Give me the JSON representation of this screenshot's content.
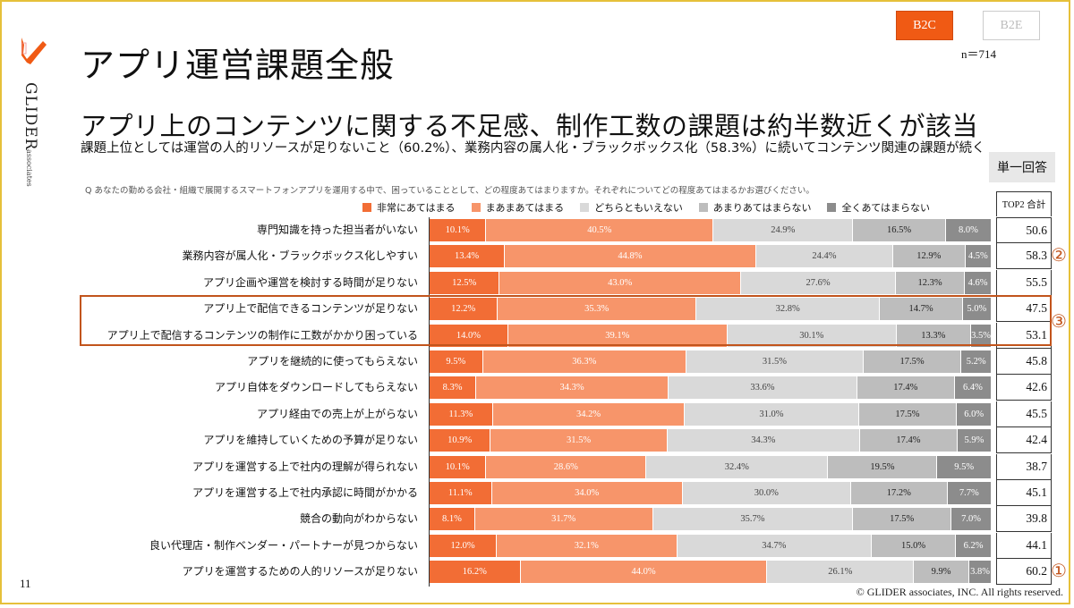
{
  "brand": {
    "name": "GLIDER",
    "sub": "associates",
    "accent": "#f05a14"
  },
  "header": {
    "title": "アプリ運営課題全般",
    "tabs": [
      {
        "label": "B2C",
        "active": true
      },
      {
        "label": "B2E",
        "active": false
      }
    ],
    "sample": "n＝714"
  },
  "headline": "アプリ上のコンテンツに関する不足感、制作工数の課題は約半数近くが該当",
  "subline": "課題上位としては運営の人的リソースが足りないこと（60.2%）、業務内容の属人化・ブラックボックス化（58.3%）に続いてコンテンツ関連の課題が続く",
  "answer_type": "単一回答",
  "question": "Q あなたの勤める会社・組織で展開するスマートフォンアプリを運用する中で、困っていることとして、どの程度あてはまりますか。それぞれについてどの程度あてはまるかお選びください。",
  "top2_header": "TOP2 合計",
  "chart_data": {
    "type": "bar",
    "orientation": "horizontal-stacked-100",
    "title": "アプリ運営課題全般",
    "xlabel": "",
    "ylabel": "",
    "xlim": [
      0,
      100
    ],
    "legend_position": "top",
    "series": [
      {
        "name": "非常にあてはまる",
        "color": "#f26d35",
        "text_color": "#ffffff",
        "values": [
          10.1,
          13.4,
          12.5,
          12.2,
          14.0,
          9.5,
          8.3,
          11.3,
          10.9,
          10.1,
          11.1,
          8.1,
          12.0,
          16.2
        ]
      },
      {
        "name": "まあまあてはまる",
        "color": "#f7956a",
        "text_color": "#ffffff",
        "values": [
          40.5,
          44.8,
          43.0,
          35.3,
          39.1,
          36.3,
          34.3,
          34.2,
          31.5,
          28.6,
          34.0,
          31.7,
          32.1,
          44.0
        ]
      },
      {
        "name": "どちらともいえない",
        "color": "#d9d9d9",
        "text_color": "#444444",
        "values": [
          24.9,
          24.4,
          27.6,
          32.8,
          30.1,
          31.5,
          33.6,
          31.0,
          34.3,
          32.4,
          30.0,
          35.7,
          34.7,
          26.1
        ]
      },
      {
        "name": "あまりあてはまらない",
        "color": "#bdbdbd",
        "text_color": "#222222",
        "values": [
          16.5,
          12.9,
          12.3,
          14.7,
          13.3,
          17.5,
          17.4,
          17.5,
          17.4,
          19.5,
          17.2,
          17.5,
          15.0,
          9.9
        ]
      },
      {
        "name": "全くあてはまらない",
        "color": "#8c8c8c",
        "text_color": "#ffffff",
        "values": [
          8.0,
          4.5,
          4.6,
          5.0,
          3.5,
          5.2,
          6.4,
          6.0,
          5.9,
          9.5,
          7.7,
          7.0,
          6.2,
          3.8
        ]
      }
    ],
    "categories": [
      "専門知識を持った担当者がいない",
      "業務内容が属人化・ブラックボックス化しやすい",
      "アプリ企画や運営を検討する時間が足りない",
      "アプリ上で配信できるコンテンツが足りない",
      "アプリ上で配信するコンテンツの制作に工数がかかり困っている",
      "アプリを継続的に使ってもらえない",
      "アプリ自体をダウンロードしてもらえない",
      "アプリ経由での売上が上がらない",
      "アプリを維持していくための予算が足りない",
      "アプリを運営する上で社内の理解が得られない",
      "アプリを運営する上で社内承認に時間がかかる",
      "競合の動向がわからない",
      "良い代理店・制作ベンダー・パートナーが見つからない",
      "アプリを運営するための人的リソースが足りない"
    ],
    "top2_totals": [
      "50.6",
      "58.3",
      "55.5",
      "47.5",
      "53.1",
      "45.8",
      "42.6",
      "45.5",
      "42.4",
      "38.7",
      "45.1",
      "39.8",
      "44.1",
      "60.2"
    ],
    "annotations": [
      {
        "row": 13,
        "label": "①"
      },
      {
        "row": 1,
        "label": "②"
      },
      {
        "rows": [
          3,
          4
        ],
        "label": "③",
        "highlight": true
      }
    ]
  },
  "footer": {
    "page": "11",
    "copyright": "© GLIDER associates, INC. All rights reserved."
  }
}
